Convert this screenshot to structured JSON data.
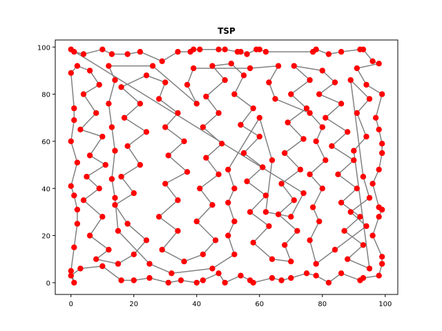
{
  "chart_data": {
    "type": "line",
    "title": "TSP",
    "xlabel": "",
    "ylabel": "",
    "xlim": [
      -5,
      104
    ],
    "ylim": [
      -5,
      103
    ],
    "xticks": [
      0,
      20,
      40,
      60,
      80,
      100
    ],
    "yticks": [
      0,
      20,
      40,
      60,
      80,
      100
    ],
    "grid": false,
    "legend": "none",
    "point_color": "#ff0000",
    "line_color": "#808080",
    "series": [
      {
        "route_closed": true,
        "points": [
          [
            0,
            99
          ],
          [
            1,
            98
          ],
          [
            4,
            97
          ],
          [
            10,
            99
          ],
          [
            13,
            97
          ],
          [
            18,
            97
          ],
          [
            22,
            98
          ],
          [
            29,
            94
          ],
          [
            34,
            98
          ],
          [
            38,
            98
          ],
          [
            39,
            99
          ],
          [
            41,
            99
          ],
          [
            47,
            99
          ],
          [
            49,
            99
          ],
          [
            53,
            98
          ],
          [
            54,
            98
          ],
          [
            56,
            97
          ],
          [
            59,
            99
          ],
          [
            60,
            99
          ],
          [
            62,
            98
          ],
          [
            77,
            98
          ],
          [
            78,
            99
          ],
          [
            82,
            97
          ],
          [
            86,
            98
          ],
          [
            92,
            99
          ],
          [
            93,
            99
          ],
          [
            96,
            94
          ],
          [
            98,
            93
          ],
          [
            91,
            91
          ],
          [
            94,
            84
          ],
          [
            99,
            80
          ],
          [
            97,
            70
          ],
          [
            98,
            65
          ],
          [
            99,
            59
          ],
          [
            99,
            55
          ],
          [
            98,
            48
          ],
          [
            96,
            42
          ],
          [
            98,
            32
          ],
          [
            99,
            31
          ],
          [
            98,
            28
          ],
          [
            96,
            20
          ],
          [
            99,
            11
          ],
          [
            99,
            8
          ],
          [
            98,
            3
          ],
          [
            93,
            2
          ],
          [
            92,
            1
          ],
          [
            86,
            4
          ],
          [
            82,
            0
          ],
          [
            78,
            3
          ],
          [
            75,
            4
          ],
          [
            70,
            2
          ],
          [
            67,
            1
          ],
          [
            64,
            2
          ],
          [
            58,
            0
          ],
          [
            57,
            1
          ],
          [
            54,
            3
          ],
          [
            49,
            0
          ],
          [
            47,
            4
          ],
          [
            42,
            1
          ],
          [
            40,
            0
          ],
          [
            35,
            1
          ],
          [
            31,
            0
          ],
          [
            25,
            2
          ],
          [
            20,
            1
          ],
          [
            16,
            1
          ],
          [
            10,
            7
          ],
          [
            3,
            6
          ],
          [
            0,
            3
          ],
          [
            1,
            0
          ],
          [
            0,
            5
          ],
          [
            1,
            15
          ],
          [
            2,
            25
          ],
          [
            2,
            31
          ],
          [
            1,
            37
          ],
          [
            0,
            41
          ],
          [
            2,
            51
          ],
          [
            0,
            60
          ],
          [
            1,
            69
          ],
          [
            1,
            74
          ],
          [
            0,
            89
          ],
          [
            2,
            92
          ],
          [
            6,
            90
          ],
          [
            9,
            84
          ],
          [
            4,
            80
          ],
          [
            8,
            72
          ],
          [
            3,
            65
          ],
          [
            10,
            62
          ],
          [
            6,
            54
          ],
          [
            11,
            50
          ],
          [
            5,
            45
          ],
          [
            9,
            40
          ],
          [
            4,
            35
          ],
          [
            10,
            28
          ],
          [
            6,
            20
          ],
          [
            12,
            14
          ],
          [
            8,
            10
          ],
          [
            15,
            8
          ],
          [
            20,
            12
          ],
          [
            24,
            18
          ],
          [
            18,
            25
          ],
          [
            14,
            33
          ],
          [
            20,
            38
          ],
          [
            16,
            45
          ],
          [
            22,
            50
          ],
          [
            18,
            58
          ],
          [
            24,
            64
          ],
          [
            17,
            70
          ],
          [
            22,
            76
          ],
          [
            16,
            83
          ],
          [
            24,
            88
          ],
          [
            30,
            85
          ],
          [
            28,
            78
          ],
          [
            34,
            72
          ],
          [
            30,
            66
          ],
          [
            36,
            60
          ],
          [
            31,
            54
          ],
          [
            37,
            47
          ],
          [
            30,
            42
          ],
          [
            34,
            35
          ],
          [
            28,
            28
          ],
          [
            34,
            22
          ],
          [
            29,
            14
          ],
          [
            36,
            9
          ],
          [
            42,
            12
          ],
          [
            46,
            18
          ],
          [
            40,
            26
          ],
          [
            45,
            33
          ],
          [
            41,
            40
          ],
          [
            47,
            46
          ],
          [
            43,
            53
          ],
          [
            48,
            59
          ],
          [
            42,
            66
          ],
          [
            47,
            72
          ],
          [
            43,
            79
          ],
          [
            49,
            86
          ],
          [
            45,
            92
          ],
          [
            51,
            93
          ],
          [
            55,
            88
          ],
          [
            52,
            80
          ],
          [
            58,
            74
          ],
          [
            54,
            67
          ],
          [
            60,
            62
          ],
          [
            55,
            55
          ],
          [
            61,
            49
          ],
          [
            56,
            43
          ],
          [
            62,
            37
          ],
          [
            57,
            30
          ],
          [
            63,
            24
          ],
          [
            58,
            17
          ],
          [
            64,
            10
          ],
          [
            70,
            9
          ],
          [
            68,
            16
          ],
          [
            72,
            22
          ],
          [
            66,
            29
          ],
          [
            71,
            35
          ],
          [
            67,
            42
          ],
          [
            73,
            48
          ],
          [
            68,
            55
          ],
          [
            74,
            61
          ],
          [
            69,
            68
          ],
          [
            75,
            74
          ],
          [
            70,
            80
          ],
          [
            76,
            86
          ],
          [
            71,
            92
          ],
          [
            80,
            90
          ],
          [
            84,
            85
          ],
          [
            79,
            80
          ],
          [
            86,
            76
          ],
          [
            81,
            70
          ],
          [
            88,
            64
          ],
          [
            83,
            58
          ],
          [
            90,
            52
          ],
          [
            85,
            46
          ],
          [
            91,
            40
          ],
          [
            86,
            34
          ],
          [
            92,
            28
          ],
          [
            87,
            22
          ],
          [
            93,
            16
          ],
          [
            88,
            10
          ],
          [
            95,
            6
          ],
          [
            90,
            56
          ],
          [
            94,
            62
          ],
          [
            91,
            72
          ],
          [
            95,
            78
          ],
          [
            89,
            86
          ],
          [
            93,
            45
          ],
          [
            95,
            36
          ],
          [
            89,
            30
          ],
          [
            94,
            24
          ],
          [
            84,
            14
          ],
          [
            78,
            8
          ],
          [
            76,
            18
          ],
          [
            79,
            26
          ],
          [
            77,
            32
          ],
          [
            80,
            40
          ],
          [
            76,
            46
          ],
          [
            81,
            52
          ],
          [
            78,
            60
          ],
          [
            80,
            66
          ],
          [
            76,
            72
          ],
          [
            65,
            78
          ],
          [
            63,
            85
          ],
          [
            66,
            92
          ],
          [
            57,
            91
          ],
          [
            39,
            91
          ],
          [
            37,
            84
          ],
          [
            40,
            76
          ],
          [
            26,
            92
          ],
          [
            12,
            92
          ],
          [
            14,
            86
          ],
          [
            12,
            76
          ],
          [
            13,
            66
          ],
          [
            14,
            56
          ],
          [
            13,
            44
          ],
          [
            14,
            36
          ],
          [
            15,
            22
          ],
          [
            25,
            8
          ],
          [
            32,
            4
          ],
          [
            45,
            6
          ],
          [
            52,
            12
          ],
          [
            50,
            20
          ],
          [
            52,
            26
          ],
          [
            50,
            34
          ],
          [
            52,
            40
          ],
          [
            50,
            48
          ],
          [
            60,
            70
          ],
          [
            64,
            52
          ],
          [
            62,
            30
          ],
          [
            70,
            28
          ],
          [
            74,
            38
          ]
        ]
      }
    ]
  }
}
